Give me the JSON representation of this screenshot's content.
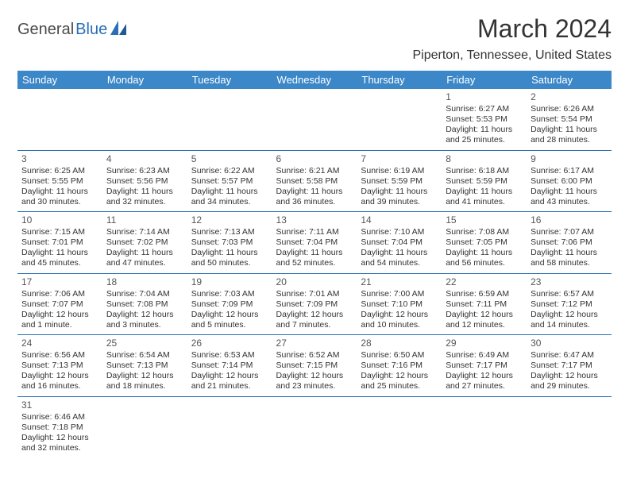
{
  "logo": {
    "part1": "General",
    "part2": "Blue"
  },
  "title": "March 2024",
  "location": "Piperton, Tennessee, United States",
  "colors": {
    "header_bg": "#3b87c8",
    "header_text": "#ffffff",
    "border": "#2a6fb5",
    "text": "#333333",
    "logo_gray": "#4a4a4a",
    "logo_blue": "#2a6fb5"
  },
  "day_headers": [
    "Sunday",
    "Monday",
    "Tuesday",
    "Wednesday",
    "Thursday",
    "Friday",
    "Saturday"
  ],
  "weeks": [
    [
      null,
      null,
      null,
      null,
      null,
      {
        "n": "1",
        "sr": "Sunrise: 6:27 AM",
        "ss": "Sunset: 5:53 PM",
        "d1": "Daylight: 11 hours",
        "d2": "and 25 minutes."
      },
      {
        "n": "2",
        "sr": "Sunrise: 6:26 AM",
        "ss": "Sunset: 5:54 PM",
        "d1": "Daylight: 11 hours",
        "d2": "and 28 minutes."
      }
    ],
    [
      {
        "n": "3",
        "sr": "Sunrise: 6:25 AM",
        "ss": "Sunset: 5:55 PM",
        "d1": "Daylight: 11 hours",
        "d2": "and 30 minutes."
      },
      {
        "n": "4",
        "sr": "Sunrise: 6:23 AM",
        "ss": "Sunset: 5:56 PM",
        "d1": "Daylight: 11 hours",
        "d2": "and 32 minutes."
      },
      {
        "n": "5",
        "sr": "Sunrise: 6:22 AM",
        "ss": "Sunset: 5:57 PM",
        "d1": "Daylight: 11 hours",
        "d2": "and 34 minutes."
      },
      {
        "n": "6",
        "sr": "Sunrise: 6:21 AM",
        "ss": "Sunset: 5:58 PM",
        "d1": "Daylight: 11 hours",
        "d2": "and 36 minutes."
      },
      {
        "n": "7",
        "sr": "Sunrise: 6:19 AM",
        "ss": "Sunset: 5:59 PM",
        "d1": "Daylight: 11 hours",
        "d2": "and 39 minutes."
      },
      {
        "n": "8",
        "sr": "Sunrise: 6:18 AM",
        "ss": "Sunset: 5:59 PM",
        "d1": "Daylight: 11 hours",
        "d2": "and 41 minutes."
      },
      {
        "n": "9",
        "sr": "Sunrise: 6:17 AM",
        "ss": "Sunset: 6:00 PM",
        "d1": "Daylight: 11 hours",
        "d2": "and 43 minutes."
      }
    ],
    [
      {
        "n": "10",
        "sr": "Sunrise: 7:15 AM",
        "ss": "Sunset: 7:01 PM",
        "d1": "Daylight: 11 hours",
        "d2": "and 45 minutes."
      },
      {
        "n": "11",
        "sr": "Sunrise: 7:14 AM",
        "ss": "Sunset: 7:02 PM",
        "d1": "Daylight: 11 hours",
        "d2": "and 47 minutes."
      },
      {
        "n": "12",
        "sr": "Sunrise: 7:13 AM",
        "ss": "Sunset: 7:03 PM",
        "d1": "Daylight: 11 hours",
        "d2": "and 50 minutes."
      },
      {
        "n": "13",
        "sr": "Sunrise: 7:11 AM",
        "ss": "Sunset: 7:04 PM",
        "d1": "Daylight: 11 hours",
        "d2": "and 52 minutes."
      },
      {
        "n": "14",
        "sr": "Sunrise: 7:10 AM",
        "ss": "Sunset: 7:04 PM",
        "d1": "Daylight: 11 hours",
        "d2": "and 54 minutes."
      },
      {
        "n": "15",
        "sr": "Sunrise: 7:08 AM",
        "ss": "Sunset: 7:05 PM",
        "d1": "Daylight: 11 hours",
        "d2": "and 56 minutes."
      },
      {
        "n": "16",
        "sr": "Sunrise: 7:07 AM",
        "ss": "Sunset: 7:06 PM",
        "d1": "Daylight: 11 hours",
        "d2": "and 58 minutes."
      }
    ],
    [
      {
        "n": "17",
        "sr": "Sunrise: 7:06 AM",
        "ss": "Sunset: 7:07 PM",
        "d1": "Daylight: 12 hours",
        "d2": "and 1 minute."
      },
      {
        "n": "18",
        "sr": "Sunrise: 7:04 AM",
        "ss": "Sunset: 7:08 PM",
        "d1": "Daylight: 12 hours",
        "d2": "and 3 minutes."
      },
      {
        "n": "19",
        "sr": "Sunrise: 7:03 AM",
        "ss": "Sunset: 7:09 PM",
        "d1": "Daylight: 12 hours",
        "d2": "and 5 minutes."
      },
      {
        "n": "20",
        "sr": "Sunrise: 7:01 AM",
        "ss": "Sunset: 7:09 PM",
        "d1": "Daylight: 12 hours",
        "d2": "and 7 minutes."
      },
      {
        "n": "21",
        "sr": "Sunrise: 7:00 AM",
        "ss": "Sunset: 7:10 PM",
        "d1": "Daylight: 12 hours",
        "d2": "and 10 minutes."
      },
      {
        "n": "22",
        "sr": "Sunrise: 6:59 AM",
        "ss": "Sunset: 7:11 PM",
        "d1": "Daylight: 12 hours",
        "d2": "and 12 minutes."
      },
      {
        "n": "23",
        "sr": "Sunrise: 6:57 AM",
        "ss": "Sunset: 7:12 PM",
        "d1": "Daylight: 12 hours",
        "d2": "and 14 minutes."
      }
    ],
    [
      {
        "n": "24",
        "sr": "Sunrise: 6:56 AM",
        "ss": "Sunset: 7:13 PM",
        "d1": "Daylight: 12 hours",
        "d2": "and 16 minutes."
      },
      {
        "n": "25",
        "sr": "Sunrise: 6:54 AM",
        "ss": "Sunset: 7:13 PM",
        "d1": "Daylight: 12 hours",
        "d2": "and 18 minutes."
      },
      {
        "n": "26",
        "sr": "Sunrise: 6:53 AM",
        "ss": "Sunset: 7:14 PM",
        "d1": "Daylight: 12 hours",
        "d2": "and 21 minutes."
      },
      {
        "n": "27",
        "sr": "Sunrise: 6:52 AM",
        "ss": "Sunset: 7:15 PM",
        "d1": "Daylight: 12 hours",
        "d2": "and 23 minutes."
      },
      {
        "n": "28",
        "sr": "Sunrise: 6:50 AM",
        "ss": "Sunset: 7:16 PM",
        "d1": "Daylight: 12 hours",
        "d2": "and 25 minutes."
      },
      {
        "n": "29",
        "sr": "Sunrise: 6:49 AM",
        "ss": "Sunset: 7:17 PM",
        "d1": "Daylight: 12 hours",
        "d2": "and 27 minutes."
      },
      {
        "n": "30",
        "sr": "Sunrise: 6:47 AM",
        "ss": "Sunset: 7:17 PM",
        "d1": "Daylight: 12 hours",
        "d2": "and 29 minutes."
      }
    ],
    [
      {
        "n": "31",
        "sr": "Sunrise: 6:46 AM",
        "ss": "Sunset: 7:18 PM",
        "d1": "Daylight: 12 hours",
        "d2": "and 32 minutes."
      },
      null,
      null,
      null,
      null,
      null,
      null
    ]
  ]
}
